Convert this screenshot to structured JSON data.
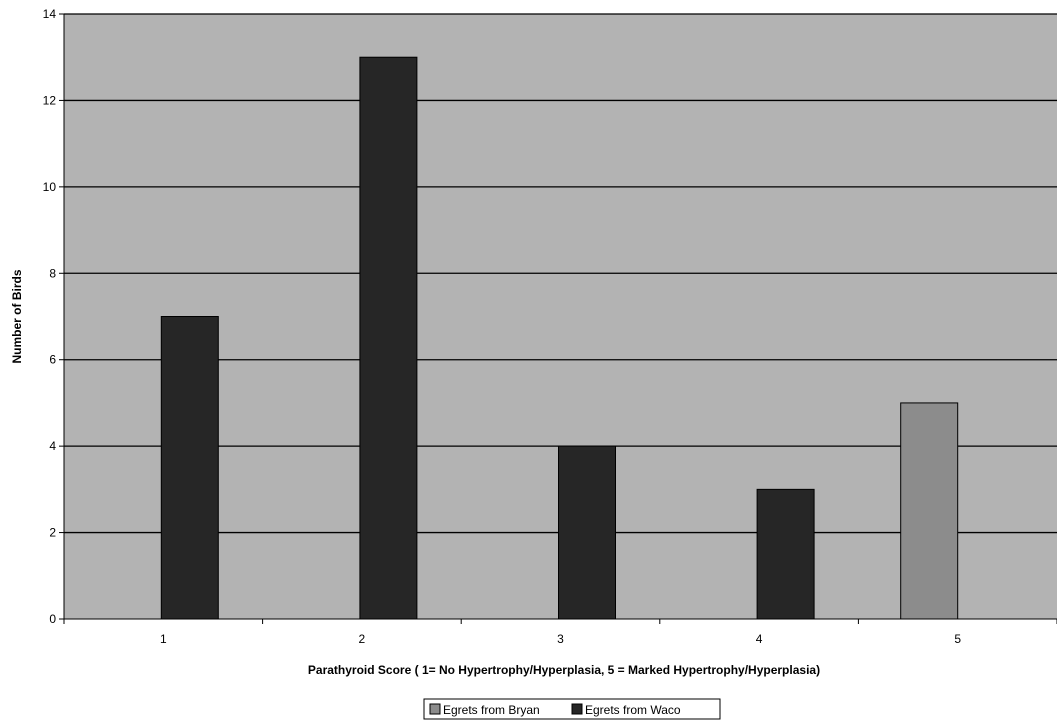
{
  "chart_data": {
    "type": "bar",
    "title": "",
    "xlabel": "Parathyroid Score ( 1= No Hypertrophy/Hyperplasia, 5 = Marked Hypertrophy/Hyperplasia)",
    "ylabel": "Number of Birds",
    "categories": [
      "1",
      "2",
      "3",
      "4",
      "5"
    ],
    "ylim": [
      0,
      14
    ],
    "yticks": [
      "0",
      "2",
      "4",
      "6",
      "8",
      "10",
      "12",
      "14"
    ],
    "grid": true,
    "legend_position": "bottom",
    "series": [
      {
        "name": "Egrets from Bryan",
        "color": "#8c8c8c",
        "values": [
          0,
          0,
          0,
          0,
          5
        ]
      },
      {
        "name": "Egrets from Waco",
        "color": "#262626",
        "values": [
          7,
          13,
          4,
          3,
          0
        ]
      }
    ],
    "plot_background": "#b3b3b3"
  }
}
